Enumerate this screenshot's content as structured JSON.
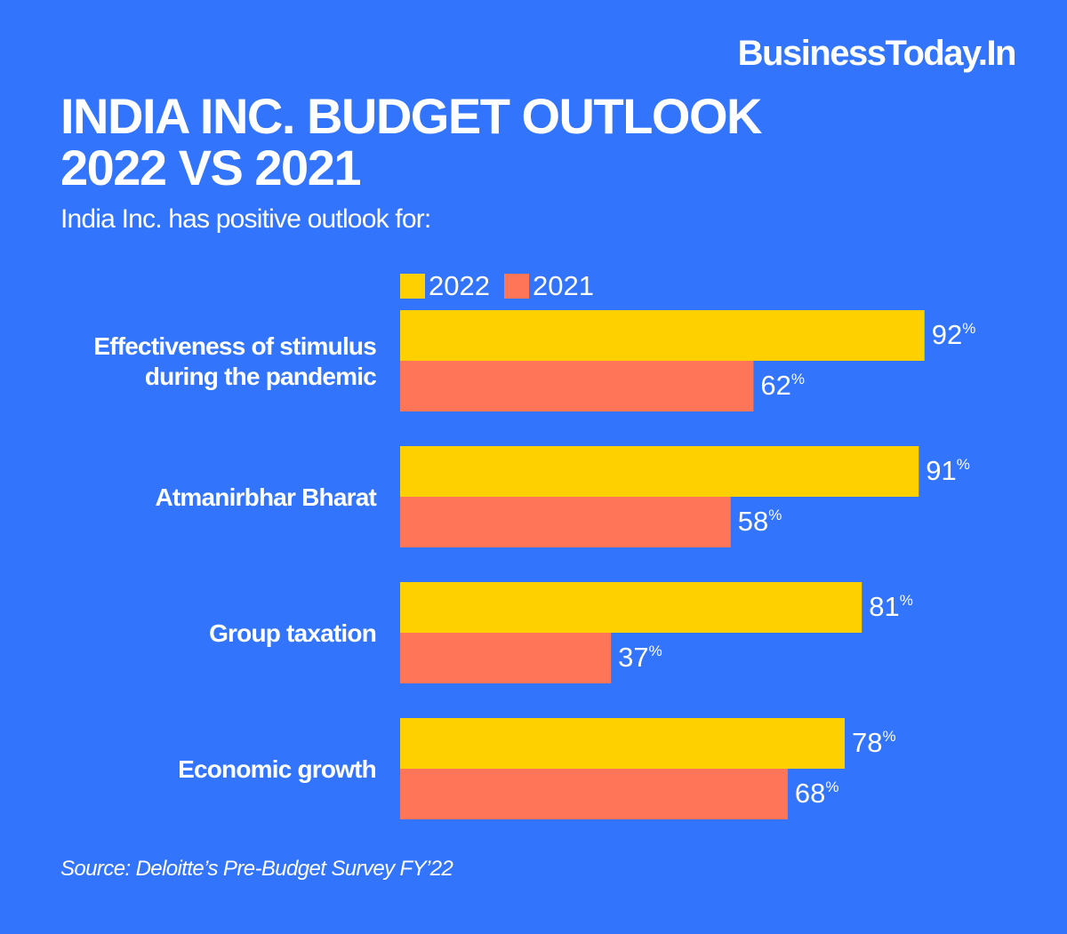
{
  "brand": "BusinessToday.In",
  "title_line1": "INDIA INC. BUDGET OUTLOOK",
  "title_line2": "2022 VS 2021",
  "subtitle": "India Inc. has positive outlook for:",
  "source": "Source: Deloitte’s Pre-Budget Survey FY’22",
  "colors": {
    "background": "#3274fb",
    "series_2022": "#ffd000",
    "series_2021": "#ff7557",
    "text": "#ffffff"
  },
  "chart_data": {
    "type": "bar",
    "orientation": "horizontal",
    "title": "INDIA INC. BUDGET OUTLOOK 2022 VS 2021",
    "subtitle": "India Inc. has positive outlook for:",
    "categories": [
      [
        "Effectiveness of stimulus",
        "during the pandemic"
      ],
      [
        "Atmanirbhar Bharat"
      ],
      [
        "Group taxation"
      ],
      [
        "Economic growth"
      ]
    ],
    "series": [
      {
        "name": "2022",
        "color": "#ffd000",
        "values": [
          92,
          91,
          81,
          78
        ]
      },
      {
        "name": "2021",
        "color": "#ff7557",
        "values": [
          62,
          58,
          37,
          68
        ]
      }
    ],
    "value_suffix": "%",
    "xlim": [
      0,
      100
    ],
    "grid": false,
    "legend": "top",
    "xlabel": "",
    "ylabel": ""
  }
}
